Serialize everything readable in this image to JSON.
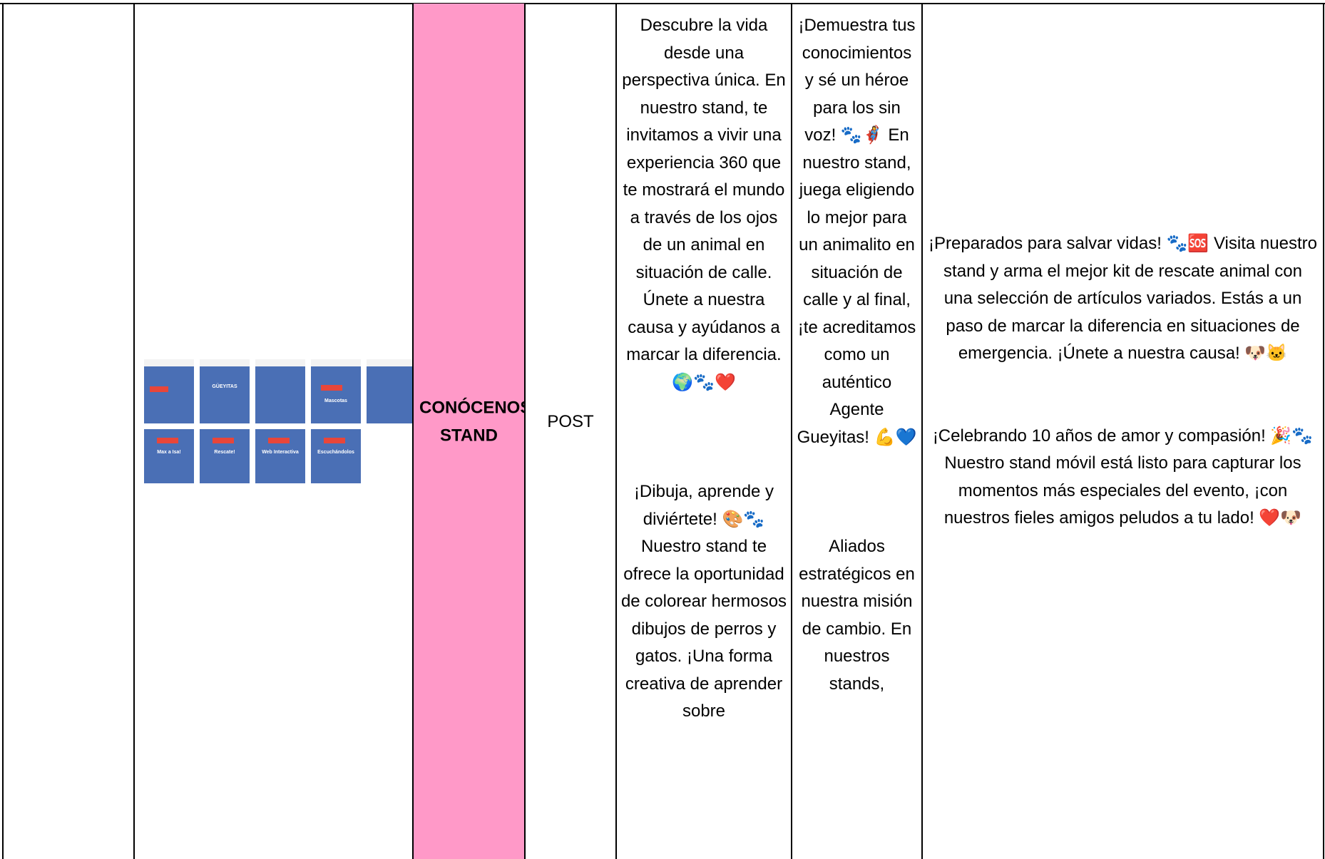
{
  "table": {
    "rows": [
      [
        {
          "thumbnail": [
            "GÜEYITAS",
            "Mascotas",
            "Max a Isa!",
            "Rescate!",
            "Web Interactiva",
            "Escuchándolos"
          ]
        },
        "CONÓCENOS STAND",
        "POST",
        [
          "Descubre la vida desde una perspectiva única. En nuestro stand, te invitamos a vivir una experiencia 360 que te mostrará el mundo a través de los ojos de un animal en situación de calle. Únete a nuestra causa y ayúdanos a marcar la diferencia. 🌍🐾❤️",
          "¡Dibuja, aprende y diviértete! 🎨🐾 Nuestro stand te ofrece la oportunidad de colorear hermosos dibujos de perros y gatos. ¡Una forma creativa de aprender sobre"
        ],
        [
          "¡Demuestra tus conocimientos y sé un héroe para los sin voz! 🐾🦸‍♀️ En nuestro stand, juega eligiendo lo mejor para un animalito en situación de calle y al final, ¡te acreditamos como un auténtico Agente Gueyitas! 💪💙",
          "Aliados estratégicos en nuestra misión de cambio. En nuestros stands,"
        ],
        [
          "¡Preparados para salvar vidas! 🐾🆘 Visita nuestro stand y arma el mejor kit de rescate animal con una selección de artículos variados. Estás a un paso de marcar la diferencia en situaciones de emergencia. ¡Únete a nuestra causa! 🐶🐱",
          "¡Celebrando 10 años de amor y compasión! 🎉🐾 Nuestro stand móvil está listo para capturar los momentos más especiales del evento, ¡con nuestros fieles amigos peludos a tu lado! ❤️🐶"
        ]
      ]
    ]
  }
}
